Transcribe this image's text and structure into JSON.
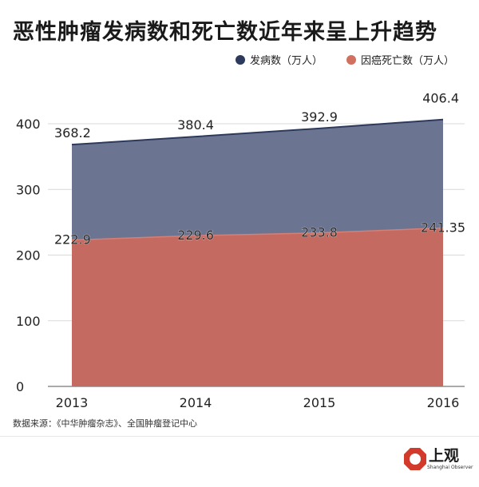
{
  "title": "恶性肿瘤发病数和死亡数近年来呈上升趋势",
  "source": "数据来源：《中华肿瘤杂志》、全国肿瘤登记中心",
  "logo": {
    "name": "上观",
    "sub": "Shanghai Observer"
  },
  "colors": {
    "incidence": "#6b7592",
    "incidence_line": "#2e3a5c",
    "death": "#c46a60",
    "death_dot": "#d2705f",
    "grid": "#d9d9d9"
  },
  "chart_data": {
    "type": "area",
    "x": [
      "2013",
      "2014",
      "2015",
      "2016"
    ],
    "ylim": [
      0,
      400
    ],
    "yticks": [
      "0",
      "100",
      "200",
      "300",
      "400"
    ],
    "grid": true,
    "legend_position": "top-right",
    "series": [
      {
        "name": "发病数（万人）",
        "values": [
          368.2,
          380.4,
          392.9,
          406.4
        ],
        "labels": [
          "368.2",
          "380.4",
          "392.9",
          "406.4"
        ]
      },
      {
        "name": "因癌死亡数（万人）",
        "values": [
          222.9,
          229.6,
          233.8,
          241.35
        ],
        "labels": [
          "222.9",
          "229.6",
          "233.8",
          "241.35"
        ]
      }
    ]
  }
}
